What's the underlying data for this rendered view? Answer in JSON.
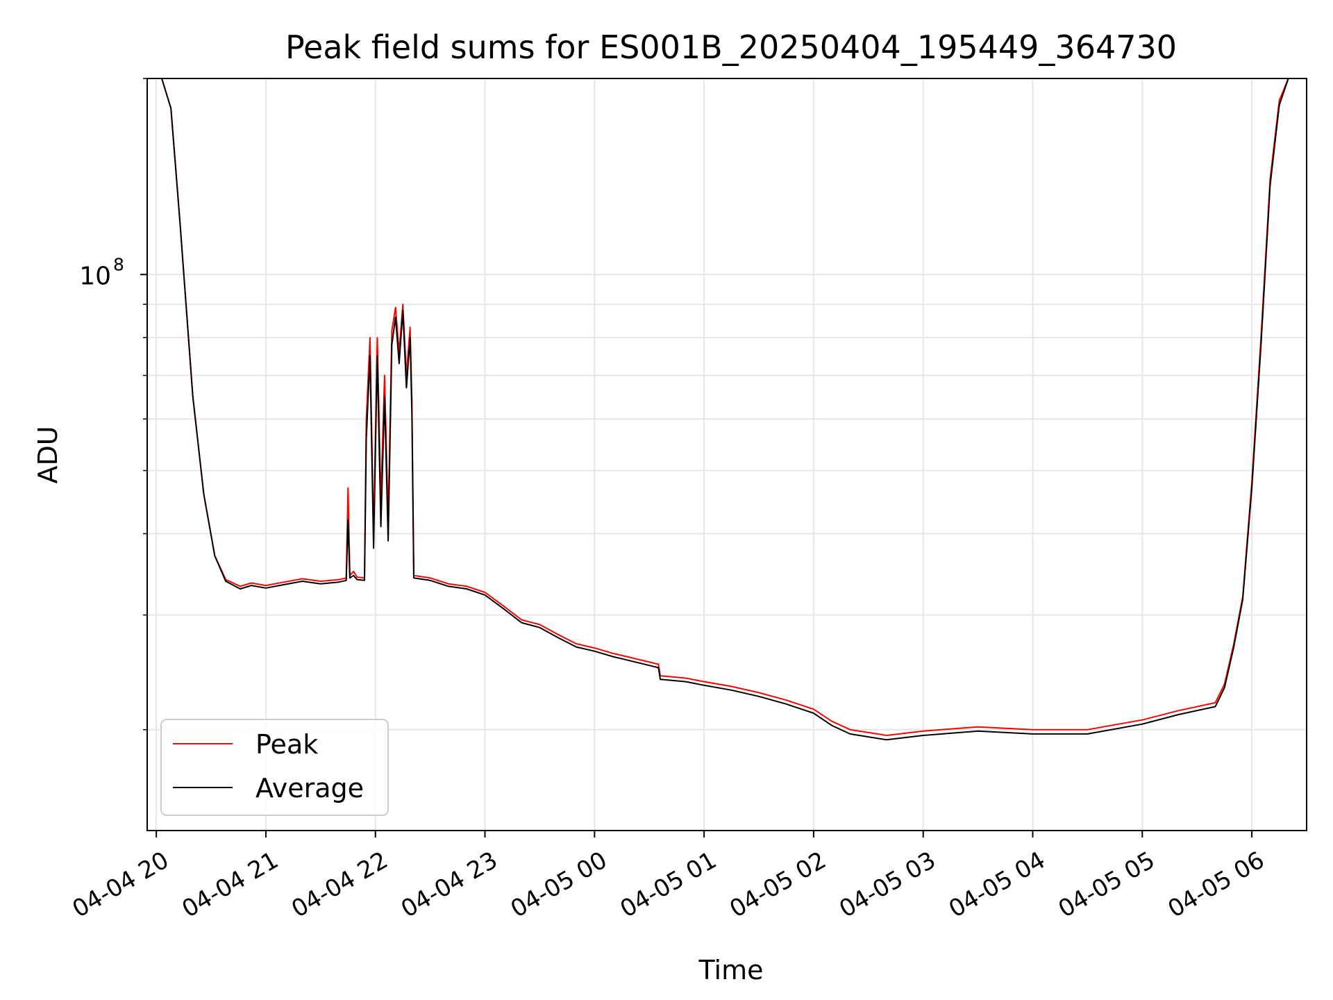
{
  "chart_data": {
    "type": "line",
    "title": "Peak field sums for ES001B_20250404_195449_364730",
    "xlabel": "Time",
    "ylabel": "ADU",
    "yscale": "log",
    "grid": true,
    "legend_position": "lower-left",
    "xlim": [
      "2025-04-04 19:55",
      "2025-04-05 06:30"
    ],
    "ylim": [
      14000000,
      200000000
    ],
    "x_ticks": [
      {
        "value": "2025-04-04 20:00",
        "label": "04-04 20"
      },
      {
        "value": "2025-04-04 21:00",
        "label": "04-04 21"
      },
      {
        "value": "2025-04-04 22:00",
        "label": "04-04 22"
      },
      {
        "value": "2025-04-04 23:00",
        "label": "04-04 23"
      },
      {
        "value": "2025-04-05 00:00",
        "label": "04-05 00"
      },
      {
        "value": "2025-04-05 01:00",
        "label": "04-05 01"
      },
      {
        "value": "2025-04-05 02:00",
        "label": "04-05 02"
      },
      {
        "value": "2025-04-05 03:00",
        "label": "04-05 03"
      },
      {
        "value": "2025-04-05 04:00",
        "label": "04-05 04"
      },
      {
        "value": "2025-04-05 05:00",
        "label": "04-05 05"
      },
      {
        "value": "2025-04-05 06:00",
        "label": "04-05 06"
      }
    ],
    "y_major_ticks": [
      {
        "value": 100000000,
        "base": "10",
        "exponent": "8"
      }
    ],
    "y_minor_ticks": [
      20000000,
      30000000,
      40000000,
      50000000,
      60000000,
      70000000,
      80000000,
      90000000,
      200000000
    ],
    "series": [
      {
        "name": "Peak",
        "color": "#ff0000",
        "points": [
          [
            "2025-04-04 19:57",
            200000000
          ],
          [
            "2025-04-04 20:03",
            200000000
          ],
          [
            "2025-04-04 20:08",
            180000000
          ],
          [
            "2025-04-04 20:13",
            120000000
          ],
          [
            "2025-04-04 20:20",
            65000000
          ],
          [
            "2025-04-04 20:26",
            46000000
          ],
          [
            "2025-04-04 20:32",
            37000000
          ],
          [
            "2025-04-04 20:38",
            34000000
          ],
          [
            "2025-04-04 20:46",
            33200000
          ],
          [
            "2025-04-04 20:52",
            33600000
          ],
          [
            "2025-04-04 21:00",
            33300000
          ],
          [
            "2025-04-04 21:10",
            33700000
          ],
          [
            "2025-04-04 21:20",
            34100000
          ],
          [
            "2025-04-04 21:30",
            33800000
          ],
          [
            "2025-04-04 21:40",
            34000000
          ],
          [
            "2025-04-04 21:44",
            34200000
          ],
          [
            "2025-04-04 21:45",
            47000000
          ],
          [
            "2025-04-04 21:46",
            34500000
          ],
          [
            "2025-04-04 21:48",
            35000000
          ],
          [
            "2025-04-04 21:50",
            34300000
          ],
          [
            "2025-04-04 21:54",
            34200000
          ],
          [
            "2025-04-04 21:55",
            60000000
          ],
          [
            "2025-04-04 21:57",
            80000000
          ],
          [
            "2025-04-04 21:59",
            40000000
          ],
          [
            "2025-04-04 22:01",
            80000000
          ],
          [
            "2025-04-04 22:03",
            45000000
          ],
          [
            "2025-04-04 22:05",
            70000000
          ],
          [
            "2025-04-04 22:07",
            42000000
          ],
          [
            "2025-04-04 22:09",
            82000000
          ],
          [
            "2025-04-04 22:11",
            89000000
          ],
          [
            "2025-04-04 22:13",
            76000000
          ],
          [
            "2025-04-04 22:15",
            90000000
          ],
          [
            "2025-04-04 22:17",
            70000000
          ],
          [
            "2025-04-04 22:19",
            83000000
          ],
          [
            "2025-04-04 22:20",
            64000000
          ],
          [
            "2025-04-04 22:21",
            34500000
          ],
          [
            "2025-04-04 22:30",
            34200000
          ],
          [
            "2025-04-04 22:40",
            33500000
          ],
          [
            "2025-04-04 22:50",
            33200000
          ],
          [
            "2025-04-04 23:00",
            32500000
          ],
          [
            "2025-04-04 23:10",
            31000000
          ],
          [
            "2025-04-04 23:20",
            29500000
          ],
          [
            "2025-04-04 23:30",
            29000000
          ],
          [
            "2025-04-04 23:40",
            28000000
          ],
          [
            "2025-04-04 23:50",
            27100000
          ],
          [
            "2025-04-05 00:00",
            26700000
          ],
          [
            "2025-04-05 00:10",
            26200000
          ],
          [
            "2025-04-05 00:20",
            25800000
          ],
          [
            "2025-04-05 00:30",
            25400000
          ],
          [
            "2025-04-05 00:35",
            25200000
          ],
          [
            "2025-04-05 00:36",
            24200000
          ],
          [
            "2025-04-05 00:50",
            24000000
          ],
          [
            "2025-04-05 01:00",
            23700000
          ],
          [
            "2025-04-05 01:15",
            23300000
          ],
          [
            "2025-04-05 01:30",
            22800000
          ],
          [
            "2025-04-05 01:45",
            22200000
          ],
          [
            "2025-04-05 02:00",
            21500000
          ],
          [
            "2025-04-05 02:10",
            20600000
          ],
          [
            "2025-04-05 02:20",
            20000000
          ],
          [
            "2025-04-05 02:40",
            19600000
          ],
          [
            "2025-04-05 03:00",
            19900000
          ],
          [
            "2025-04-05 03:30",
            20200000
          ],
          [
            "2025-04-05 04:00",
            20000000
          ],
          [
            "2025-04-05 04:30",
            20000000
          ],
          [
            "2025-04-05 05:00",
            20700000
          ],
          [
            "2025-04-05 05:20",
            21400000
          ],
          [
            "2025-04-05 05:40",
            22000000
          ],
          [
            "2025-04-05 05:45",
            23500000
          ],
          [
            "2025-04-05 05:50",
            27000000
          ],
          [
            "2025-04-05 05:55",
            32000000
          ],
          [
            "2025-04-05 06:00",
            48000000
          ],
          [
            "2025-04-05 06:05",
            80000000
          ],
          [
            "2025-04-05 06:10",
            140000000
          ],
          [
            "2025-04-05 06:15",
            185000000
          ],
          [
            "2025-04-05 06:20",
            200000000
          ]
        ]
      },
      {
        "name": "Average",
        "color": "#000000",
        "points": [
          [
            "2025-04-04 19:57",
            200000000
          ],
          [
            "2025-04-04 20:03",
            200000000
          ],
          [
            "2025-04-04 20:08",
            180000000
          ],
          [
            "2025-04-04 20:13",
            120000000
          ],
          [
            "2025-04-04 20:20",
            65000000
          ],
          [
            "2025-04-04 20:26",
            46000000
          ],
          [
            "2025-04-04 20:32",
            37000000
          ],
          [
            "2025-04-04 20:38",
            33800000
          ],
          [
            "2025-04-04 20:46",
            32900000
          ],
          [
            "2025-04-04 20:52",
            33300000
          ],
          [
            "2025-04-04 21:00",
            33000000
          ],
          [
            "2025-04-04 21:10",
            33400000
          ],
          [
            "2025-04-04 21:20",
            33800000
          ],
          [
            "2025-04-04 21:30",
            33500000
          ],
          [
            "2025-04-04 21:40",
            33700000
          ],
          [
            "2025-04-04 21:44",
            33900000
          ],
          [
            "2025-04-04 21:45",
            42000000
          ],
          [
            "2025-04-04 21:46",
            34200000
          ],
          [
            "2025-04-04 21:48",
            34500000
          ],
          [
            "2025-04-04 21:50",
            34000000
          ],
          [
            "2025-04-04 21:54",
            33900000
          ],
          [
            "2025-04-04 21:55",
            56000000
          ],
          [
            "2025-04-04 21:57",
            75000000
          ],
          [
            "2025-04-04 21:59",
            38000000
          ],
          [
            "2025-04-04 22:01",
            75000000
          ],
          [
            "2025-04-04 22:03",
            41000000
          ],
          [
            "2025-04-04 22:05",
            65000000
          ],
          [
            "2025-04-04 22:07",
            39000000
          ],
          [
            "2025-04-04 22:09",
            78000000
          ],
          [
            "2025-04-04 22:11",
            86000000
          ],
          [
            "2025-04-04 22:13",
            73000000
          ],
          [
            "2025-04-04 22:15",
            88000000
          ],
          [
            "2025-04-04 22:17",
            67000000
          ],
          [
            "2025-04-04 22:19",
            80000000
          ],
          [
            "2025-04-04 22:20",
            61000000
          ],
          [
            "2025-04-04 22:21",
            34200000
          ],
          [
            "2025-04-04 22:30",
            33900000
          ],
          [
            "2025-04-04 22:40",
            33200000
          ],
          [
            "2025-04-04 22:50",
            32900000
          ],
          [
            "2025-04-04 23:00",
            32200000
          ],
          [
            "2025-04-04 23:10",
            30700000
          ],
          [
            "2025-04-04 23:20",
            29200000
          ],
          [
            "2025-04-04 23:30",
            28700000
          ],
          [
            "2025-04-04 23:40",
            27700000
          ],
          [
            "2025-04-04 23:50",
            26800000
          ],
          [
            "2025-04-05 00:00",
            26400000
          ],
          [
            "2025-04-05 00:10",
            25900000
          ],
          [
            "2025-04-05 00:20",
            25500000
          ],
          [
            "2025-04-05 00:30",
            25100000
          ],
          [
            "2025-04-05 00:35",
            24900000
          ],
          [
            "2025-04-05 00:36",
            23900000
          ],
          [
            "2025-04-05 00:50",
            23700000
          ],
          [
            "2025-04-05 01:00",
            23400000
          ],
          [
            "2025-04-05 01:15",
            23000000
          ],
          [
            "2025-04-05 01:30",
            22500000
          ],
          [
            "2025-04-05 01:45",
            21900000
          ],
          [
            "2025-04-05 02:00",
            21200000
          ],
          [
            "2025-04-05 02:10",
            20300000
          ],
          [
            "2025-04-05 02:20",
            19700000
          ],
          [
            "2025-04-05 02:40",
            19300000
          ],
          [
            "2025-04-05 03:00",
            19600000
          ],
          [
            "2025-04-05 03:30",
            19900000
          ],
          [
            "2025-04-05 04:00",
            19700000
          ],
          [
            "2025-04-05 04:30",
            19700000
          ],
          [
            "2025-04-05 05:00",
            20400000
          ],
          [
            "2025-04-05 05:20",
            21100000
          ],
          [
            "2025-04-05 05:40",
            21700000
          ],
          [
            "2025-04-05 05:45",
            23200000
          ],
          [
            "2025-04-05 05:50",
            26700000
          ],
          [
            "2025-04-05 05:55",
            31700000
          ],
          [
            "2025-04-05 06:00",
            47000000
          ],
          [
            "2025-04-05 06:05",
            78000000
          ],
          [
            "2025-04-05 06:10",
            137000000
          ],
          [
            "2025-04-05 06:15",
            182000000
          ],
          [
            "2025-04-05 06:20",
            200000000
          ]
        ]
      }
    ]
  }
}
